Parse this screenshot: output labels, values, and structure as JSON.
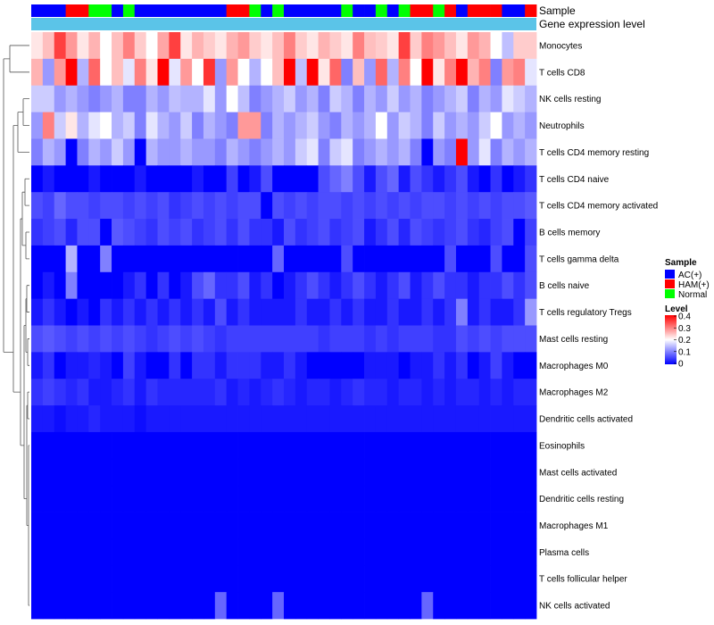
{
  "chart_data": {
    "type": "heatmap",
    "title": "",
    "annotation_tracks": {
      "sample_label": "Sample",
      "gene_label": "Gene expression level",
      "gene_color": "#5bc4e8"
    },
    "column_groups": [
      "AC",
      "AC",
      "AC",
      "HAM",
      "HAM",
      "Normal",
      "Normal",
      "AC",
      "Normal",
      "AC",
      "AC",
      "AC",
      "AC",
      "AC",
      "AC",
      "AC",
      "AC",
      "HAM",
      "HAM",
      "Normal",
      "AC",
      "Normal",
      "AC",
      "AC",
      "AC",
      "AC",
      "AC",
      "Normal",
      "AC",
      "AC",
      "Normal",
      "AC",
      "Normal",
      "HAM",
      "HAM",
      "Normal",
      "HAM",
      "AC",
      "HAM",
      "HAM",
      "HAM",
      "AC",
      "AC",
      "HAM"
    ],
    "rows": [
      "Monocytes",
      "T cells CD8",
      "NK cells resting",
      "Neutrophils",
      "T cells CD4 memory resting",
      "T cells CD4 naive",
      "T cells CD4 memory activated",
      "B cells memory",
      "T cells gamma delta",
      "B cells naive",
      "T cells regulatory  Tregs",
      "Mast cells resting",
      "Macrophages M0",
      "Macrophages M2",
      "Dendritic cells activated",
      "Eosinophils",
      "Mast cells activated",
      "Dendritic cells resting",
      "Macrophages M1",
      "Plasma cells",
      "T cells follicular helper",
      "NK cells activated"
    ],
    "values": [
      [
        0.22,
        0.25,
        0.35,
        0.28,
        0.22,
        0.26,
        0.2,
        0.25,
        0.3,
        0.24,
        0.2,
        0.27,
        0.35,
        0.22,
        0.26,
        0.24,
        0.22,
        0.26,
        0.28,
        0.24,
        0.22,
        0.25,
        0.3,
        0.24,
        0.22,
        0.26,
        0.24,
        0.22,
        0.3,
        0.25,
        0.24,
        0.22,
        0.35,
        0.24,
        0.3,
        0.28,
        0.25,
        0.22,
        0.28,
        0.26,
        0.2,
        0.15,
        0.24,
        0.24
      ],
      [
        0.26,
        0.12,
        0.28,
        0.4,
        0.14,
        0.32,
        0.2,
        0.25,
        0.18,
        0.3,
        0.22,
        0.4,
        0.18,
        0.28,
        0.2,
        0.36,
        0.12,
        0.28,
        0.2,
        0.14,
        0.2,
        0.25,
        0.4,
        0.15,
        0.4,
        0.22,
        0.32,
        0.1,
        0.25,
        0.12,
        0.32,
        0.14,
        0.3,
        0.2,
        0.4,
        0.22,
        0.3,
        0.4,
        0.26,
        0.3,
        0.1,
        0.28,
        0.3,
        0.18
      ],
      [
        0.16,
        0.16,
        0.12,
        0.14,
        0.12,
        0.1,
        0.12,
        0.14,
        0.1,
        0.1,
        0.14,
        0.12,
        0.15,
        0.14,
        0.14,
        0.18,
        0.12,
        0.2,
        0.15,
        0.1,
        0.12,
        0.14,
        0.16,
        0.12,
        0.14,
        0.1,
        0.16,
        0.14,
        0.1,
        0.14,
        0.12,
        0.16,
        0.12,
        0.14,
        0.1,
        0.12,
        0.14,
        0.16,
        0.1,
        0.14,
        0.12,
        0.18,
        0.16,
        0.14
      ],
      [
        0.12,
        0.3,
        0.16,
        0.22,
        0.14,
        0.18,
        0.2,
        0.14,
        0.16,
        0.1,
        0.18,
        0.14,
        0.12,
        0.16,
        0.1,
        0.14,
        0.12,
        0.1,
        0.28,
        0.28,
        0.1,
        0.14,
        0.12,
        0.14,
        0.16,
        0.12,
        0.1,
        0.14,
        0.12,
        0.14,
        0.2,
        0.12,
        0.16,
        0.14,
        0.1,
        0.16,
        0.12,
        0.14,
        0.12,
        0.16,
        0.2,
        0.12,
        0.14,
        0.12
      ],
      [
        0.1,
        0.14,
        0.12,
        0.0,
        0.1,
        0.14,
        0.12,
        0.16,
        0.12,
        0.0,
        0.14,
        0.12,
        0.12,
        0.14,
        0.12,
        0.12,
        0.1,
        0.14,
        0.12,
        0.1,
        0.12,
        0.14,
        0.12,
        0.16,
        0.18,
        0.1,
        0.16,
        0.18,
        0.1,
        0.12,
        0.14,
        0.12,
        0.14,
        0.1,
        0.0,
        0.12,
        0.1,
        0.4,
        0.12,
        0.18,
        0.1,
        0.14,
        0.12,
        0.14
      ],
      [
        0.0,
        0.02,
        0.0,
        0.0,
        0.0,
        0.02,
        0.0,
        0.0,
        0.0,
        0.02,
        0.0,
        0.0,
        0.0,
        0.0,
        0.02,
        0.0,
        0.0,
        0.05,
        0.0,
        0.02,
        0.06,
        0.0,
        0.0,
        0.0,
        0.0,
        0.06,
        0.08,
        0.1,
        0.06,
        0.02,
        0.06,
        0.08,
        0.02,
        0.06,
        0.04,
        0.02,
        0.04,
        0.06,
        0.02,
        0.0,
        0.04,
        0.0,
        0.02,
        0.04
      ],
      [
        0.06,
        0.05,
        0.08,
        0.06,
        0.06,
        0.05,
        0.06,
        0.06,
        0.05,
        0.06,
        0.05,
        0.06,
        0.04,
        0.05,
        0.06,
        0.05,
        0.06,
        0.05,
        0.06,
        0.06,
        0.0,
        0.06,
        0.05,
        0.06,
        0.05,
        0.06,
        0.06,
        0.05,
        0.06,
        0.05,
        0.06,
        0.05,
        0.06,
        0.05,
        0.06,
        0.06,
        0.05,
        0.06,
        0.05,
        0.06,
        0.05,
        0.06,
        0.06,
        0.07
      ],
      [
        0.04,
        0.05,
        0.06,
        0.03,
        0.06,
        0.06,
        0.0,
        0.07,
        0.06,
        0.05,
        0.04,
        0.06,
        0.05,
        0.06,
        0.04,
        0.05,
        0.06,
        0.04,
        0.06,
        0.04,
        0.04,
        0.02,
        0.06,
        0.04,
        0.05,
        0.06,
        0.04,
        0.05,
        0.06,
        0.02,
        0.04,
        0.06,
        0.03,
        0.06,
        0.05,
        0.04,
        0.05,
        0.06,
        0.04,
        0.03,
        0.05,
        0.06,
        0.0,
        0.05
      ],
      [
        0.0,
        0.0,
        0.0,
        0.14,
        0.0,
        0.0,
        0.1,
        0.0,
        0.0,
        0.0,
        0.0,
        0.0,
        0.0,
        0.0,
        0.0,
        0.0,
        0.0,
        0.0,
        0.0,
        0.0,
        0.0,
        0.08,
        0.0,
        0.0,
        0.0,
        0.0,
        0.0,
        0.06,
        0.0,
        0.0,
        0.0,
        0.0,
        0.0,
        0.0,
        0.0,
        0.0,
        0.06,
        0.0,
        0.0,
        0.0,
        0.06,
        0.0,
        0.0,
        0.06
      ],
      [
        0.0,
        0.02,
        0.0,
        0.1,
        0.0,
        0.0,
        0.0,
        0.0,
        0.02,
        0.04,
        0.0,
        0.04,
        0.0,
        0.02,
        0.06,
        0.08,
        0.04,
        0.04,
        0.06,
        0.02,
        0.04,
        0.0,
        0.02,
        0.04,
        0.06,
        0.04,
        0.02,
        0.04,
        0.06,
        0.04,
        0.02,
        0.04,
        0.06,
        0.02,
        0.04,
        0.06,
        0.04,
        0.04,
        0.02,
        0.04,
        0.04,
        0.06,
        0.04,
        0.06
      ],
      [
        0.02,
        0.04,
        0.02,
        0.0,
        0.02,
        0.0,
        0.04,
        0.02,
        0.04,
        0.02,
        0.04,
        0.02,
        0.04,
        0.02,
        0.04,
        0.02,
        0.06,
        0.02,
        0.04,
        0.02,
        0.02,
        0.02,
        0.02,
        0.04,
        0.02,
        0.02,
        0.04,
        0.02,
        0.04,
        0.02,
        0.02,
        0.04,
        0.02,
        0.02,
        0.04,
        0.02,
        0.04,
        0.1,
        0.02,
        0.04,
        0.02,
        0.02,
        0.04,
        0.12
      ],
      [
        0.06,
        0.07,
        0.06,
        0.05,
        0.06,
        0.05,
        0.06,
        0.05,
        0.06,
        0.05,
        0.04,
        0.05,
        0.06,
        0.05,
        0.06,
        0.05,
        0.04,
        0.05,
        0.05,
        0.05,
        0.05,
        0.05,
        0.05,
        0.05,
        0.05,
        0.04,
        0.05,
        0.05,
        0.05,
        0.04,
        0.05,
        0.04,
        0.05,
        0.05,
        0.05,
        0.04,
        0.04,
        0.06,
        0.05,
        0.06,
        0.05,
        0.06,
        0.06,
        0.06
      ],
      [
        0.02,
        0.04,
        0.0,
        0.02,
        0.02,
        0.03,
        0.02,
        0.0,
        0.05,
        0.02,
        0.0,
        0.0,
        0.04,
        0.0,
        0.04,
        0.04,
        0.02,
        0.04,
        0.04,
        0.04,
        0.02,
        0.02,
        0.04,
        0.02,
        0.0,
        0.0,
        0.0,
        0.0,
        0.0,
        0.02,
        0.02,
        0.02,
        0.0,
        0.02,
        0.02,
        0.04,
        0.02,
        0.04,
        0.0,
        0.02,
        0.05,
        0.02,
        0.0,
        0.0
      ],
      [
        0.04,
        0.05,
        0.04,
        0.03,
        0.04,
        0.02,
        0.02,
        0.03,
        0.04,
        0.02,
        0.04,
        0.03,
        0.03,
        0.03,
        0.03,
        0.03,
        0.04,
        0.02,
        0.03,
        0.02,
        0.03,
        0.04,
        0.03,
        0.02,
        0.03,
        0.03,
        0.02,
        0.03,
        0.04,
        0.03,
        0.03,
        0.02,
        0.03,
        0.03,
        0.02,
        0.03,
        0.02,
        0.03,
        0.03,
        0.02,
        0.03,
        0.02,
        0.03,
        0.03
      ],
      [
        0.02,
        0.02,
        0.01,
        0.02,
        0.02,
        0.03,
        0.02,
        0.02,
        0.02,
        0.01,
        0.02,
        0.02,
        0.02,
        0.02,
        0.02,
        0.02,
        0.02,
        0.02,
        0.02,
        0.02,
        0.02,
        0.02,
        0.02,
        0.02,
        0.02,
        0.02,
        0.02,
        0.02,
        0.02,
        0.02,
        0.02,
        0.02,
        0.02,
        0.02,
        0.02,
        0.02,
        0.02,
        0.02,
        0.02,
        0.02,
        0.02,
        0.02,
        0.02,
        0.02
      ],
      [
        0,
        0,
        0,
        0,
        0,
        0,
        0,
        0,
        0,
        0,
        0,
        0,
        0,
        0,
        0,
        0,
        0,
        0,
        0,
        0,
        0,
        0,
        0,
        0,
        0,
        0,
        0,
        0,
        0,
        0,
        0,
        0,
        0,
        0,
        0,
        0,
        0,
        0,
        0,
        0,
        0,
        0,
        0,
        0
      ],
      [
        0,
        0,
        0,
        0,
        0,
        0,
        0,
        0,
        0,
        0,
        0,
        0,
        0,
        0,
        0,
        0,
        0,
        0,
        0,
        0,
        0,
        0,
        0,
        0,
        0,
        0,
        0,
        0,
        0,
        0,
        0,
        0,
        0,
        0,
        0,
        0,
        0,
        0,
        0,
        0,
        0,
        0,
        0,
        0
      ],
      [
        0,
        0,
        0,
        0,
        0,
        0,
        0,
        0,
        0,
        0,
        0,
        0,
        0,
        0,
        0,
        0,
        0,
        0,
        0,
        0,
        0,
        0,
        0,
        0,
        0,
        0,
        0,
        0,
        0,
        0,
        0,
        0,
        0,
        0,
        0,
        0,
        0,
        0,
        0,
        0,
        0,
        0,
        0,
        0
      ],
      [
        0,
        0,
        0,
        0,
        0,
        0,
        0,
        0,
        0,
        0,
        0,
        0,
        0,
        0,
        0,
        0,
        0,
        0,
        0,
        0,
        0,
        0,
        0,
        0,
        0,
        0,
        0,
        0,
        0,
        0,
        0,
        0,
        0,
        0,
        0,
        0,
        0,
        0,
        0,
        0,
        0,
        0,
        0,
        0
      ],
      [
        0,
        0,
        0,
        0,
        0,
        0,
        0,
        0,
        0,
        0,
        0,
        0,
        0,
        0,
        0,
        0,
        0,
        0,
        0,
        0,
        0,
        0,
        0,
        0,
        0,
        0,
        0,
        0,
        0,
        0,
        0,
        0,
        0,
        0,
        0,
        0,
        0,
        0,
        0,
        0,
        0,
        0,
        0,
        0
      ],
      [
        0,
        0,
        0,
        0,
        0,
        0,
        0,
        0,
        0,
        0,
        0,
        0,
        0,
        0,
        0,
        0,
        0,
        0,
        0,
        0,
        0,
        0,
        0,
        0,
        0,
        0,
        0,
        0,
        0,
        0,
        0,
        0,
        0,
        0,
        0,
        0,
        0,
        0,
        0,
        0,
        0,
        0,
        0,
        0
      ],
      [
        0,
        0,
        0,
        0,
        0,
        0,
        0,
        0,
        0,
        0,
        0,
        0,
        0,
        0,
        0,
        0,
        0.08,
        0,
        0,
        0,
        0,
        0.08,
        0,
        0,
        0,
        0,
        0,
        0,
        0,
        0,
        0,
        0,
        0,
        0,
        0.08,
        0,
        0,
        0,
        0,
        0,
        0,
        0,
        0,
        0
      ]
    ],
    "legend": {
      "sample_title": "Sample",
      "groups": [
        {
          "key": "AC",
          "label": "AC(+)",
          "color": "#0000ff"
        },
        {
          "key": "HAM",
          "label": "HAM(+)",
          "color": "#ff0000"
        },
        {
          "key": "Normal",
          "label": "Normal",
          "color": "#00ff00"
        }
      ],
      "level_title": "Level",
      "level_ticks": [
        "0.4",
        "0.3",
        "0.2",
        "0.1",
        "0"
      ],
      "range": [
        0,
        0.4
      ],
      "colors": {
        "low": "#0000ff",
        "mid": "#ffffff",
        "high": "#ff0000"
      }
    }
  }
}
